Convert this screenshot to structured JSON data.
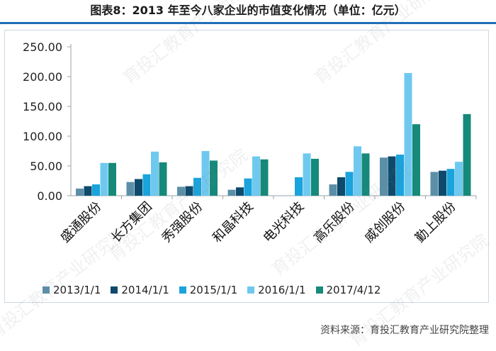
{
  "title": "图表8：2013 年至今八家企业的市值变化情况（单位：亿元）",
  "source": "资料来源：育投汇教育产业研究院整理",
  "watermark": "育投汇教育产业研究院",
  "chart_data": {
    "type": "bar",
    "categories": [
      "盛通股份",
      "长方集团",
      "秀强股份",
      "和晶科技",
      "电光科技",
      "高乐股份",
      "威创股份",
      "勤上股份"
    ],
    "series": [
      {
        "name": "2013/1/1",
        "color": "#5b8fa8",
        "values": [
          12,
          23,
          15,
          10,
          null,
          19,
          64,
          40
        ]
      },
      {
        "name": "2014/1/1",
        "color": "#0d4a6b",
        "values": [
          16,
          28,
          16,
          14,
          null,
          31,
          66,
          42
        ]
      },
      {
        "name": "2015/1/1",
        "color": "#1aa3dc",
        "values": [
          19,
          36,
          30,
          29,
          31,
          40,
          69,
          45
        ]
      },
      {
        "name": "2016/1/1",
        "color": "#6fc9ef",
        "values": [
          55,
          74,
          75,
          66,
          71,
          83,
          206,
          57
        ]
      },
      {
        "name": "2017/4/12",
        "color": "#16897a",
        "values": [
          55,
          56,
          59,
          61,
          62,
          71,
          120,
          137
        ]
      }
    ],
    "yticks": [
      "250.00",
      "200.00",
      "150.00",
      "100.00",
      "50.00",
      "0.00"
    ],
    "ylim": [
      0,
      250
    ],
    "grid": false,
    "legend": "bottom"
  }
}
